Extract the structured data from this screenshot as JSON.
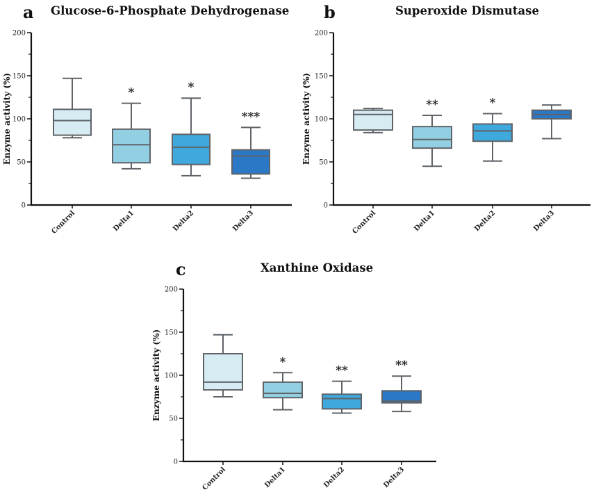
{
  "chart_data": [
    {
      "type": "box",
      "panel_label": "a",
      "title": "Glucose-6-Phosphate Dehydrogenase",
      "xlabel": "",
      "ylabel": "Enzyme activity  (%)",
      "ylim": [
        0,
        200
      ],
      "yticks_major": [
        0,
        50,
        100,
        150,
        200
      ],
      "yticks_minor": [
        25,
        75,
        125,
        175
      ],
      "grid": false,
      "categories": [
        "Control",
        "Delta1",
        "Delta2",
        "Delta3"
      ],
      "series": [
        {
          "name": "Control",
          "whisker_low": 78,
          "q1": 81,
          "median": 98,
          "q3": 111,
          "whisker_high": 147,
          "significance": "",
          "color": "#d6ebf2"
        },
        {
          "name": "Delta1",
          "whisker_low": 42,
          "q1": 49,
          "median": 70,
          "q3": 88,
          "whisker_high": 118,
          "significance": "*",
          "color": "#92cfe2"
        },
        {
          "name": "Delta2",
          "whisker_low": 34,
          "q1": 47,
          "median": 67,
          "q3": 82,
          "whisker_high": 124,
          "significance": "*",
          "color": "#3fa8dc"
        },
        {
          "name": "Delta3",
          "whisker_low": 31,
          "q1": 36,
          "median": 57,
          "q3": 64,
          "whisker_high": 90,
          "significance": "***",
          "color": "#2a78c6"
        }
      ]
    },
    {
      "type": "box",
      "panel_label": "b",
      "title": "Superoxide Dismutase",
      "xlabel": "",
      "ylabel": "Enzyme activity (%)",
      "ylim": [
        0,
        200
      ],
      "yticks_major": [
        0,
        50,
        100,
        150,
        200
      ],
      "yticks_minor": [
        25,
        75,
        125,
        175
      ],
      "grid": false,
      "categories": [
        "Control",
        "Delta1",
        "Delta2",
        "Delta3"
      ],
      "series": [
        {
          "name": "Control",
          "whisker_low": 84,
          "q1": 87,
          "median": 105,
          "q3": 110,
          "whisker_high": 112,
          "significance": "",
          "color": "#d6ebf2"
        },
        {
          "name": "Delta1",
          "whisker_low": 45,
          "q1": 66,
          "median": 76,
          "q3": 91,
          "whisker_high": 104,
          "significance": "**",
          "color": "#92cfe2"
        },
        {
          "name": "Delta2",
          "whisker_low": 51,
          "q1": 74,
          "median": 86,
          "q3": 94,
          "whisker_high": 106,
          "significance": "*",
          "color": "#3fa8dc"
        },
        {
          "name": "Delta3",
          "whisker_low": 77,
          "q1": 100,
          "median": 105,
          "q3": 110,
          "whisker_high": 116,
          "significance": "",
          "color": "#2a78c6"
        }
      ]
    },
    {
      "type": "box",
      "panel_label": "c",
      "title": "Xanthine Oxidase",
      "xlabel": "",
      "ylabel": "Enzyme activity (%)",
      "ylim": [
        0,
        200
      ],
      "yticks_major": [
        0,
        50,
        100,
        150,
        200
      ],
      "yticks_minor": [
        25,
        75,
        125,
        175
      ],
      "grid": false,
      "categories": [
        "Control",
        "Delta1",
        "Delta2",
        "Delta3"
      ],
      "series": [
        {
          "name": "Control",
          "whisker_low": 75,
          "q1": 83,
          "median": 92,
          "q3": 125,
          "whisker_high": 147,
          "significance": "",
          "color": "#d6ebf2"
        },
        {
          "name": "Delta1",
          "whisker_low": 60,
          "q1": 74,
          "median": 79,
          "q3": 92,
          "whisker_high": 103,
          "significance": "*",
          "color": "#92cfe2"
        },
        {
          "name": "Delta2",
          "whisker_low": 56,
          "q1": 61,
          "median": 73,
          "q3": 78,
          "whisker_high": 93,
          "significance": "**",
          "color": "#3fa8dc"
        },
        {
          "name": "Delta3",
          "whisker_low": 58,
          "q1": 68,
          "median": 70,
          "q3": 82,
          "whisker_high": 99,
          "significance": "**",
          "color": "#2a78c6"
        }
      ]
    }
  ],
  "colors": {
    "axis": "#111111",
    "box_stroke": "#5f6368",
    "text": "#111111"
  }
}
